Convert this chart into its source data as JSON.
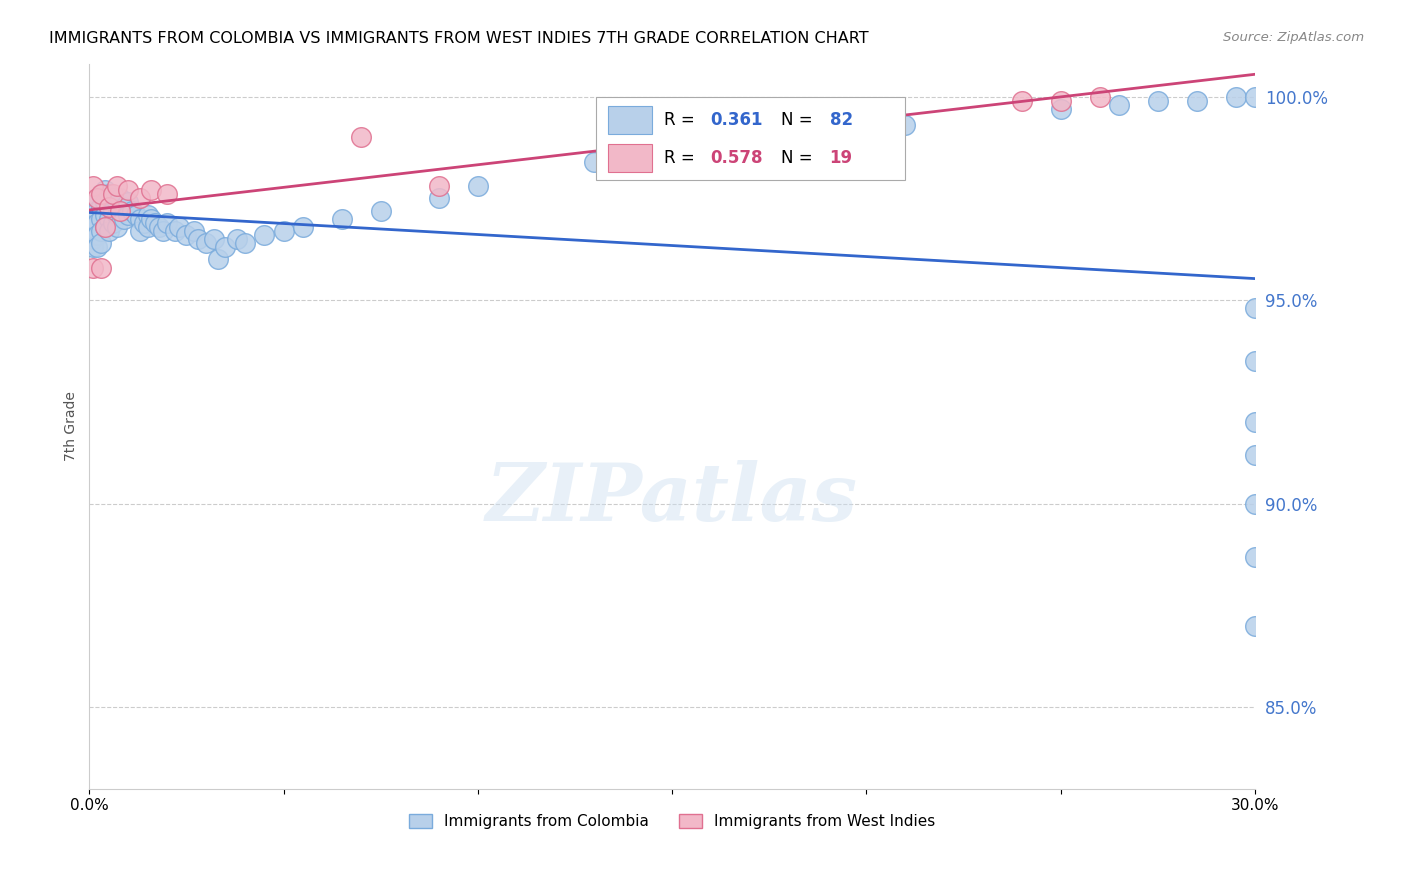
{
  "title": "IMMIGRANTS FROM COLOMBIA VS IMMIGRANTS FROM WEST INDIES 7TH GRADE CORRELATION CHART",
  "source": "Source: ZipAtlas.com",
  "ylabel": "7th Grade",
  "xlim": [
    0.0,
    0.3
  ],
  "ylim": [
    0.83,
    1.008
  ],
  "xtick_labels": [
    "0.0%",
    "",
    "",
    "",
    "",
    "",
    "30.0%"
  ],
  "yticks_right": [
    0.85,
    0.9,
    0.95,
    1.0
  ],
  "ytick_right_labels": [
    "85.0%",
    "90.0%",
    "95.0%",
    "100.0%"
  ],
  "colombia_color": "#b8d0ea",
  "colombia_edge": "#7aabdc",
  "westindies_color": "#f2b8c8",
  "westindies_edge": "#e07090",
  "regression_colombia_color": "#3366cc",
  "regression_westindies_color": "#cc4477",
  "axis_color": "#4477cc",
  "grid_color": "#cccccc",
  "watermark": "ZIPatlas",
  "title_fontsize": 11.5,
  "colombia_x": [
    0.001,
    0.001,
    0.001,
    0.001,
    0.002,
    0.002,
    0.002,
    0.002,
    0.002,
    0.003,
    0.003,
    0.003,
    0.003,
    0.003,
    0.004,
    0.004,
    0.004,
    0.004,
    0.005,
    0.005,
    0.005,
    0.005,
    0.006,
    0.006,
    0.006,
    0.007,
    0.007,
    0.007,
    0.008,
    0.008,
    0.009,
    0.009,
    0.01,
    0.01,
    0.011,
    0.012,
    0.013,
    0.013,
    0.014,
    0.015,
    0.015,
    0.016,
    0.017,
    0.018,
    0.019,
    0.02,
    0.022,
    0.023,
    0.025,
    0.027,
    0.028,
    0.03,
    0.032,
    0.033,
    0.035,
    0.038,
    0.04,
    0.045,
    0.05,
    0.055,
    0.065,
    0.075,
    0.09,
    0.1,
    0.13,
    0.15,
    0.17,
    0.195,
    0.21,
    0.25,
    0.265,
    0.275,
    0.285,
    0.295,
    0.3,
    0.3,
    0.3,
    0.3,
    0.3,
    0.3,
    0.3,
    0.3
  ],
  "colombia_y": [
    0.972,
    0.968,
    0.965,
    0.963,
    0.975,
    0.972,
    0.969,
    0.966,
    0.963,
    0.976,
    0.973,
    0.97,
    0.967,
    0.964,
    0.977,
    0.974,
    0.971,
    0.968,
    0.976,
    0.973,
    0.97,
    0.967,
    0.975,
    0.972,
    0.969,
    0.974,
    0.971,
    0.968,
    0.975,
    0.972,
    0.973,
    0.97,
    0.974,
    0.971,
    0.972,
    0.971,
    0.97,
    0.967,
    0.969,
    0.971,
    0.968,
    0.97,
    0.969,
    0.968,
    0.967,
    0.969,
    0.967,
    0.968,
    0.966,
    0.967,
    0.965,
    0.964,
    0.965,
    0.96,
    0.963,
    0.965,
    0.964,
    0.966,
    0.967,
    0.968,
    0.97,
    0.972,
    0.975,
    0.978,
    0.984,
    0.987,
    0.989,
    0.991,
    0.993,
    0.997,
    0.998,
    0.999,
    0.999,
    1.0,
    1.0,
    0.948,
    0.935,
    0.92,
    0.912,
    0.9,
    0.887,
    0.87
  ],
  "westindies_x": [
    0.001,
    0.001,
    0.002,
    0.003,
    0.003,
    0.004,
    0.005,
    0.006,
    0.007,
    0.008,
    0.01,
    0.013,
    0.016,
    0.02,
    0.07,
    0.09,
    0.24,
    0.25,
    0.26
  ],
  "westindies_y": [
    0.978,
    0.958,
    0.975,
    0.976,
    0.958,
    0.968,
    0.973,
    0.976,
    0.978,
    0.972,
    0.977,
    0.975,
    0.977,
    0.976,
    0.99,
    0.978,
    0.999,
    0.999,
    1.0
  ]
}
